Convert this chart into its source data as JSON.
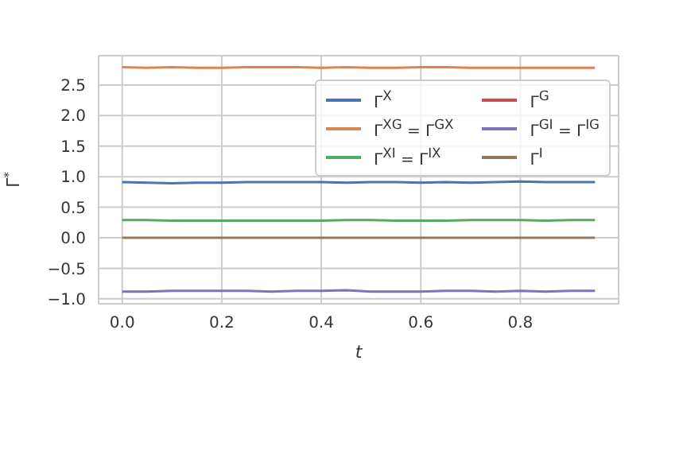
{
  "chart_data": {
    "type": "line",
    "xlabel": "t",
    "ylabel": "Γ$^{*}$",
    "x": [
      0,
      0.05,
      0.1,
      0.15,
      0.2,
      0.25,
      0.3,
      0.35,
      0.4,
      0.45,
      0.5,
      0.55,
      0.6,
      0.65,
      0.7,
      0.75,
      0.8,
      0.85,
      0.9,
      0.95
    ],
    "series": [
      {
        "name": "Γ$^{X}$",
        "color": "#4c72b0",
        "values": [
          0.91,
          0.9,
          0.89,
          0.9,
          0.9,
          0.91,
          0.91,
          0.91,
          0.91,
          0.9,
          0.91,
          0.91,
          0.9,
          0.91,
          0.9,
          0.91,
          0.92,
          0.91,
          0.91,
          0.91
        ]
      },
      {
        "name": "Γ$^{XG}$ = Γ$^{GX}$",
        "color": "#dd8452",
        "values": [
          2.79,
          2.78,
          2.79,
          2.78,
          2.78,
          2.79,
          2.79,
          2.79,
          2.78,
          2.79,
          2.78,
          2.78,
          2.79,
          2.79,
          2.78,
          2.78,
          2.78,
          2.78,
          2.78,
          2.78
        ]
      },
      {
        "name": "Γ$^{XI}$ = Γ$^{IX}$",
        "color": "#55a868",
        "values": [
          0.29,
          0.29,
          0.28,
          0.28,
          0.28,
          0.28,
          0.28,
          0.28,
          0.28,
          0.29,
          0.29,
          0.28,
          0.28,
          0.28,
          0.29,
          0.29,
          0.29,
          0.28,
          0.29,
          0.29
        ]
      },
      {
        "name": "Γ$^{G}$",
        "color": "#c44e52",
        "values": [
          null,
          null,
          null,
          null,
          null,
          null,
          null,
          null,
          null,
          null,
          null,
          null,
          null,
          null,
          null,
          null,
          null,
          null,
          null,
          null
        ]
      },
      {
        "name": "Γ$^{GI}$ = Γ$^{IG}$",
        "color": "#8172b3",
        "values": [
          -0.88,
          -0.88,
          -0.87,
          -0.87,
          -0.87,
          -0.87,
          -0.88,
          -0.87,
          -0.87,
          -0.86,
          -0.88,
          -0.88,
          -0.88,
          -0.87,
          -0.87,
          -0.88,
          -0.87,
          -0.88,
          -0.87,
          -0.87
        ]
      },
      {
        "name": "Γ$^{I}$",
        "color": "#937860",
        "values": [
          0,
          0,
          0,
          0,
          0,
          0,
          0,
          0,
          0,
          0,
          0,
          0,
          0,
          0,
          0,
          0,
          0,
          0,
          0,
          0
        ]
      }
    ],
    "xlim": [
      -0.0475,
      0.9975
    ],
    "xticks": [
      {
        "value": 0,
        "label": "0.0"
      },
      0.2,
      0.4,
      0.6,
      0.8
    ],
    "ylim": [
      -1.08,
      2.98
    ],
    "yticks": [
      {
        "value": -1,
        "label": "−1.0"
      },
      -0.5,
      {
        "value": 0,
        "label": "0.0"
      },
      0.5,
      {
        "value": 1,
        "label": "1.0"
      },
      1.5,
      {
        "value": 2,
        "label": "2.0"
      },
      2.5
    ],
    "grid": true,
    "legend": "top right",
    "marker": "none",
    "line_style": "solid"
  }
}
